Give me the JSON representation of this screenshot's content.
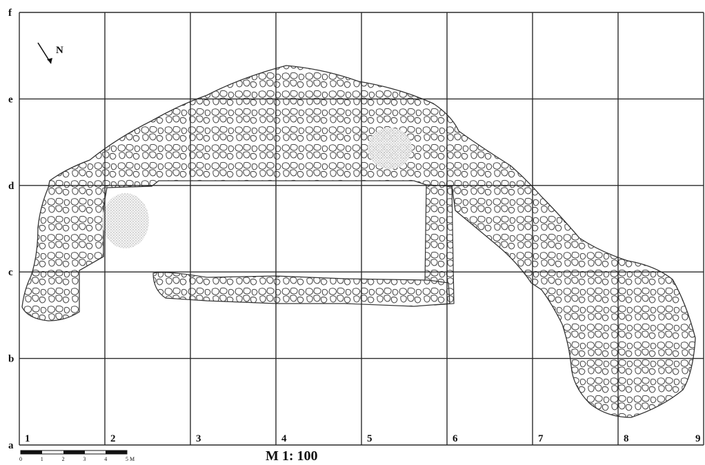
{
  "plan": {
    "north_label": "N",
    "scale_ratio": "M 1: 100",
    "scale_bar": {
      "ticks": [
        "0",
        "1",
        "2",
        "3",
        "4",
        "5 M"
      ]
    },
    "grid": {
      "rows": [
        "a",
        "b",
        "c",
        "d",
        "e",
        "f"
      ],
      "columns": [
        "1",
        "2",
        "3",
        "4",
        "5",
        "6",
        "7",
        "8",
        "9"
      ]
    }
  }
}
